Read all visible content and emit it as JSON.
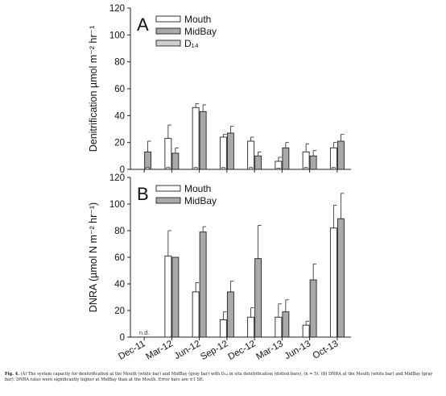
{
  "caption": {
    "label": "Fig. 4.",
    "text": "(A) The system capacity for denitrification at the Mouth (white bar) and MidBay (gray bar) with D₁₄ in situ denitrification (dotted bars), (n = 5). (B) DNRA at the Mouth (white bar) and MidBay (gray bar). DNRA rates were significantly higher at MidBay than at the Mouth. Error bars are ±1 SE."
  },
  "colors": {
    "mouth": "#ffffff",
    "midbay": "#a9a9a9",
    "d14": "#cfcfcf",
    "stroke": "#222222"
  },
  "chart_data": [
    {
      "panel_letter": "A",
      "type": "bar",
      "categories": [
        "Dec-11",
        "Mar-12",
        "Jun-12",
        "Sep-12",
        "Dec-12",
        "Mar-13",
        "Jun-13",
        "Oct-13"
      ],
      "ylabel": "Denitrification µmol m⁻² hr⁻¹",
      "ylim": [
        0,
        120
      ],
      "yticks": [
        0,
        20,
        40,
        60,
        80,
        100,
        120
      ],
      "legend": {
        "position": "top-left",
        "entries": [
          "Mouth",
          "MidBay",
          "D₁₄"
        ]
      },
      "series": [
        {
          "name": "Mouth",
          "values": [
            null,
            23,
            46,
            24,
            21,
            6,
            13,
            16
          ],
          "error": [
            null,
            10,
            3,
            2,
            3,
            3,
            6,
            4
          ]
        },
        {
          "name": "MidBay",
          "values": [
            13,
            12,
            43,
            27,
            10,
            16,
            10,
            21
          ],
          "error": [
            8,
            4,
            5,
            5,
            3,
            4,
            4,
            5
          ]
        },
        {
          "name": "D₁₄",
          "values": [
            1.5,
            1.5,
            1.5,
            1.5,
            1.5,
            1,
            1.5,
            1.5
          ]
        }
      ]
    },
    {
      "panel_letter": "B",
      "type": "bar",
      "categories": [
        "Dec-11",
        "Mar-12",
        "Jun-12",
        "Sep-12",
        "Dec-12",
        "Mar-13",
        "Jun-13",
        "Oct-13"
      ],
      "ylabel": "DNRA (µmol N m⁻² hr⁻¹)",
      "ylim": [
        0,
        120
      ],
      "yticks": [
        0,
        20,
        40,
        60,
        80,
        100,
        120
      ],
      "legend": {
        "position": "top-left",
        "entries": [
          "Mouth",
          "MidBay"
        ]
      },
      "annotation": {
        "category": "Dec-11",
        "text": "n.d."
      },
      "series": [
        {
          "name": "Mouth",
          "values": [
            null,
            61,
            34,
            13,
            15,
            15,
            9,
            82
          ],
          "error": [
            null,
            19,
            7,
            6,
            7,
            10,
            3,
            17
          ]
        },
        {
          "name": "MidBay",
          "values": [
            null,
            60,
            79,
            34,
            59,
            19,
            43,
            89
          ],
          "error": [
            null,
            0,
            4,
            8,
            25,
            9,
            12,
            19
          ]
        }
      ]
    }
  ]
}
